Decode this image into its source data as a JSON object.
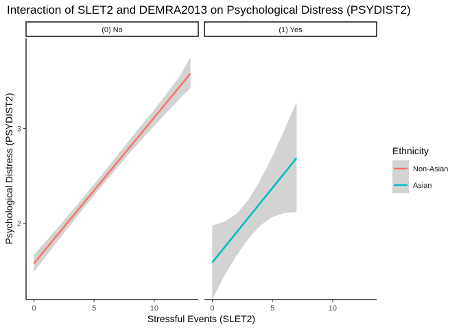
{
  "chart_data": {
    "type": "line",
    "title": "Interaction of SLET2 and DEMRA2013 on Psychological Distress (PSYDIST2)",
    "xlabel": "Stressful Events (SLET2)",
    "ylabel": "Psychological Distress (PSYDIST2)",
    "xlim": [
      -0.65,
      13.65
    ],
    "ylim": [
      1.2,
      3.95
    ],
    "x_ticks": [
      0,
      5,
      10
    ],
    "y_ticks": [
      2,
      3
    ],
    "x_tick_labels": [
      "0",
      "5",
      "10"
    ],
    "y_tick_labels": [
      "2",
      "3"
    ],
    "grid": false,
    "band_color": "#d3d3d3",
    "legend": {
      "title": "Ethnicity",
      "placement": "right",
      "entries": [
        {
          "label": "Non-Asian",
          "color": "#f8766d"
        },
        {
          "label": "Asian",
          "color": "#00bfc4"
        }
      ]
    },
    "panels": [
      {
        "strip_label": "(0) No",
        "series": [
          {
            "name": "Non-Asian",
            "color": "#f8766d",
            "x": [
              0,
              13
            ],
            "y": [
              1.58,
              3.58
            ],
            "band": {
              "x": [
                0,
                2,
                4,
                6,
                8,
                10,
                12,
                13
              ],
              "lower": [
                1.49,
                1.82,
                2.14,
                2.45,
                2.75,
                3.03,
                3.3,
                3.43
              ],
              "upper": [
                1.67,
                1.96,
                2.26,
                2.57,
                2.89,
                3.2,
                3.53,
                3.75
              ]
            }
          }
        ]
      },
      {
        "strip_label": "(1) Yes",
        "series": [
          {
            "name": "Asian",
            "color": "#00bfc4",
            "x": [
              0,
              7
            ],
            "y": [
              1.59,
              2.69
            ],
            "band": {
              "x": [
                0,
                1,
                2,
                3,
                4,
                5,
                6,
                7
              ],
              "lower": [
                1.2,
                1.45,
                1.66,
                1.84,
                1.98,
                2.07,
                2.11,
                2.12
              ],
              "upper": [
                1.98,
                2.02,
                2.1,
                2.25,
                2.46,
                2.71,
                2.99,
                3.28
              ]
            }
          }
        ]
      }
    ]
  }
}
